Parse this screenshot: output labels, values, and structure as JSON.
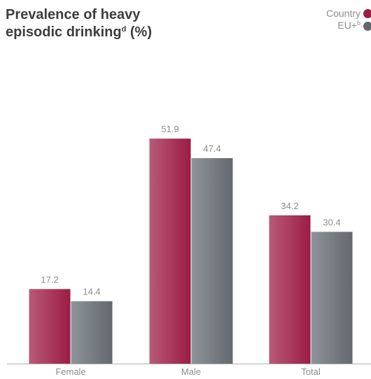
{
  "title_main": "Prevalence of heavy",
  "title_line2": "episodic drinking",
  "title_sup": "d",
  "title_suffix": " (%)",
  "legend": {
    "country": "Country",
    "eu": "EU+",
    "eu_sup": "b"
  },
  "colors": {
    "country": "#9b1c45",
    "country_light": "#b85a77",
    "eu": "#63686e",
    "eu_light": "#8f9499",
    "axis": "#b0b0b0",
    "text": "#8c8c8c"
  },
  "chart_data": {
    "type": "bar",
    "categories": [
      "Female",
      "Male",
      "Total"
    ],
    "series": [
      {
        "name": "Country",
        "values": [
          17.2,
          51.9,
          34.2
        ]
      },
      {
        "name": "EU+",
        "values": [
          14.4,
          47.4,
          30.4
        ]
      }
    ],
    "title": "Prevalence of heavy episodic drinking (%)",
    "xlabel": "",
    "ylabel": "",
    "ylim": [
      0,
      60
    ],
    "grid": false,
    "legend_position": "top-right"
  }
}
